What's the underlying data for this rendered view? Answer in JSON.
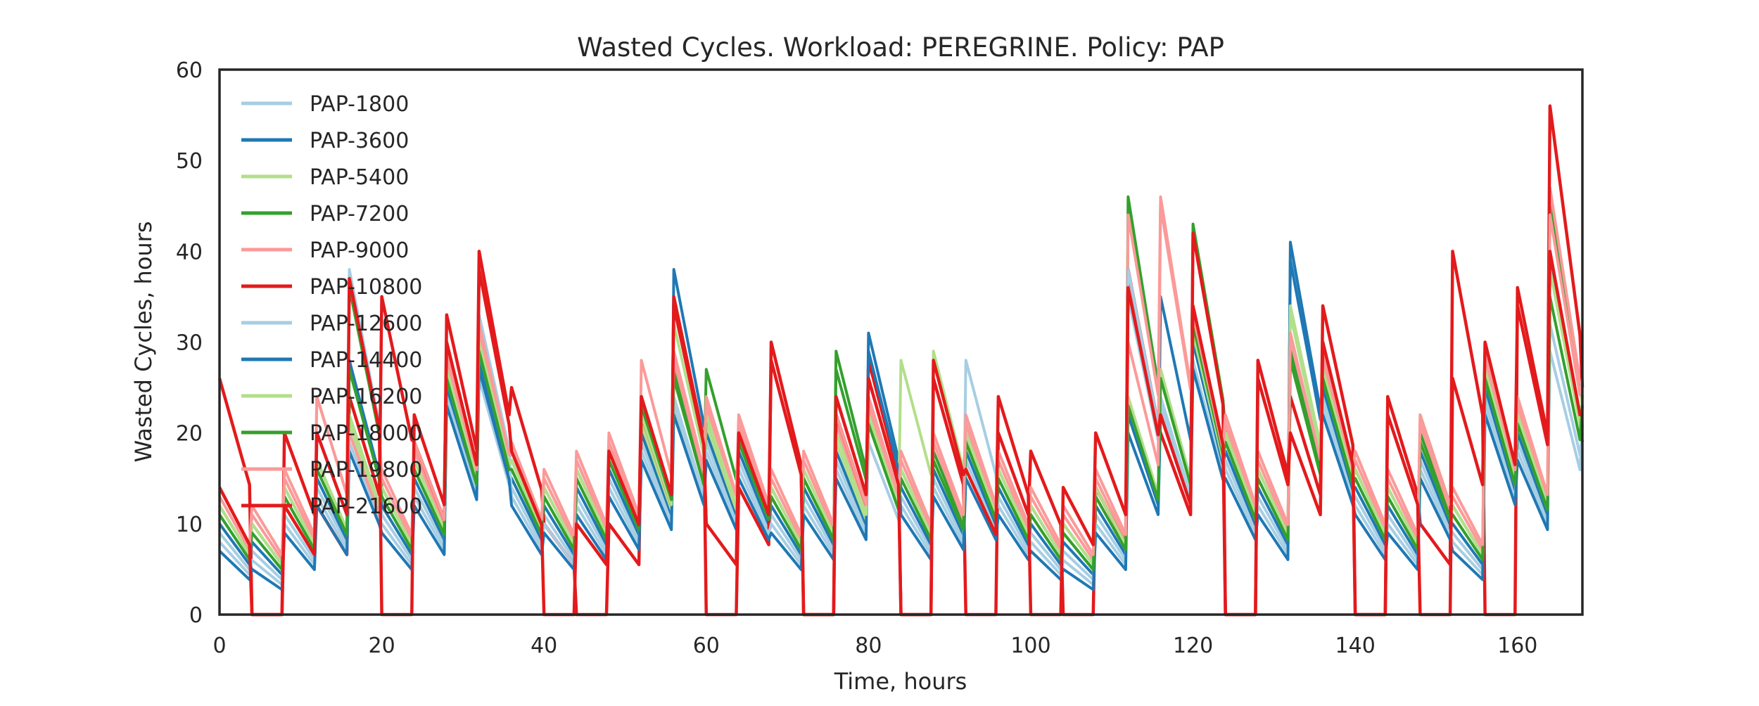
{
  "chart_data": {
    "type": "line",
    "title": "Wasted Cycles. Workload: PEREGRINE. Policy: PAP",
    "xlabel": "Time, hours",
    "ylabel": "Wasted Cycles, hours",
    "xlim": [
      0,
      168
    ],
    "ylim": [
      0,
      60
    ],
    "xticks": [
      0,
      20,
      40,
      60,
      80,
      100,
      120,
      140,
      160
    ],
    "yticks": [
      0,
      10,
      20,
      30,
      40,
      50,
      60
    ],
    "grid": false,
    "legend_position": "top-left",
    "x": [
      0,
      4,
      8,
      12,
      16,
      20,
      24,
      28,
      32,
      36,
      40,
      44,
      48,
      52,
      56,
      60,
      64,
      68,
      72,
      76,
      80,
      84,
      88,
      92,
      96,
      100,
      104,
      108,
      112,
      116,
      120,
      124,
      128,
      132,
      136,
      140,
      144,
      148,
      152,
      156,
      160,
      164,
      168
    ],
    "series": [
      {
        "name": "PAP-1800",
        "color": "#a6cee3",
        "values": [
          9,
          7,
          11,
          14,
          38,
          11,
          14,
          27,
          26,
          14,
          11,
          13,
          15,
          19,
          24,
          19,
          17,
          11,
          13,
          17,
          22,
          13,
          15,
          17,
          13,
          9,
          7,
          11,
          35,
          24,
          28,
          17,
          13,
          40,
          24,
          13,
          11,
          17,
          9,
          24,
          19,
          29,
          21
        ]
      },
      {
        "name": "PAP-3600",
        "color": "#1f78b4",
        "values": [
          10,
          8,
          12,
          15,
          28,
          12,
          15,
          25,
          28,
          15,
          12,
          14,
          16,
          20,
          38,
          20,
          18,
          12,
          14,
          18,
          31,
          14,
          16,
          18,
          14,
          10,
          8,
          12,
          22,
          35,
          30,
          18,
          14,
          41,
          25,
          14,
          12,
          18,
          10,
          25,
          20,
          39,
          22
        ]
      },
      {
        "name": "PAP-5400",
        "color": "#b2df8a",
        "values": [
          11,
          9,
          13,
          16,
          21,
          13,
          16,
          26,
          29,
          16,
          13,
          15,
          17,
          21,
          26,
          21,
          19,
          13,
          15,
          19,
          21,
          28,
          17,
          19,
          15,
          11,
          9,
          13,
          23,
          26,
          31,
          19,
          15,
          33,
          26,
          15,
          13,
          19,
          11,
          26,
          21,
          45,
          23
        ]
      },
      {
        "name": "PAP-7200",
        "color": "#33a02c",
        "values": [
          12,
          10,
          14,
          17,
          36,
          14,
          17,
          27,
          30,
          17,
          14,
          16,
          18,
          22,
          27,
          22,
          20,
          14,
          15,
          29,
          22,
          16,
          18,
          20,
          16,
          12,
          10,
          14,
          46,
          27,
          43,
          20,
          16,
          28,
          27,
          16,
          14,
          20,
          12,
          27,
          22,
          46,
          24
        ]
      },
      {
        "name": "PAP-9000",
        "color": "#fb9a99",
        "values": [
          13,
          11,
          15,
          24,
          37,
          15,
          18,
          28,
          31,
          18,
          15,
          17,
          19,
          28,
          28,
          23,
          21,
          15,
          17,
          21,
          23,
          17,
          19,
          21,
          17,
          13,
          11,
          15,
          44,
          46,
          32,
          21,
          17,
          30,
          28,
          17,
          15,
          21,
          13,
          28,
          23,
          47,
          25
        ]
      },
      {
        "name": "PAP-10800",
        "color": "#e31a1c",
        "values": [
          26,
          0,
          20,
          12,
          24,
          35,
          19,
          33,
          40,
          25,
          10,
          0,
          10,
          22,
          35,
          0,
          14,
          30,
          0,
          22,
          28,
          0,
          26,
          0,
          20,
          18,
          0,
          14,
          38,
          20,
          42,
          0,
          28,
          24,
          34,
          0,
          24,
          10,
          40,
          0,
          36,
          56,
          25
        ]
      },
      {
        "name": "PAP-12600",
        "color": "#a6cee3",
        "values": [
          8,
          6,
          10,
          13,
          19,
          10,
          13,
          24,
          33,
          13,
          10,
          12,
          14,
          18,
          23,
          18,
          16,
          10,
          12,
          16,
          19,
          12,
          14,
          28,
          12,
          8,
          6,
          10,
          38,
          23,
          32,
          16,
          12,
          31,
          23,
          12,
          10,
          16,
          8,
          23,
          18,
          32,
          20
        ]
      },
      {
        "name": "PAP-14400",
        "color": "#1f78b4",
        "values": [
          7,
          5,
          9,
          12,
          18,
          9,
          12,
          23,
          27,
          12,
          9,
          11,
          13,
          17,
          22,
          17,
          15,
          9,
          11,
          15,
          29,
          11,
          13,
          15,
          11,
          7,
          5,
          9,
          20,
          22,
          27,
          15,
          11,
          39,
          22,
          11,
          9,
          15,
          7,
          22,
          17,
          39,
          19
        ]
      },
      {
        "name": "PAP-16200",
        "color": "#b2df8a",
        "values": [
          12,
          10,
          14,
          17,
          22,
          14,
          17,
          27,
          30,
          17,
          14,
          16,
          18,
          22,
          32,
          22,
          20,
          14,
          16,
          20,
          22,
          16,
          29,
          20,
          16,
          12,
          10,
          14,
          24,
          27,
          32,
          20,
          16,
          34,
          27,
          16,
          14,
          22,
          12,
          27,
          22,
          38,
          24
        ]
      },
      {
        "name": "PAP-18000",
        "color": "#33a02c",
        "values": [
          11,
          9,
          13,
          16,
          27,
          13,
          16,
          26,
          29,
          16,
          13,
          15,
          17,
          23,
          26,
          27,
          19,
          13,
          15,
          27,
          21,
          15,
          17,
          19,
          15,
          11,
          9,
          13,
          23,
          26,
          32,
          19,
          15,
          29,
          26,
          15,
          13,
          19,
          11,
          26,
          21,
          35,
          23
        ]
      },
      {
        "name": "PAP-19800",
        "color": "#fb9a99",
        "values": [
          14,
          12,
          16,
          24,
          20,
          16,
          19,
          29,
          32,
          19,
          16,
          18,
          20,
          24,
          29,
          24,
          22,
          16,
          18,
          22,
          24,
          18,
          20,
          22,
          18,
          14,
          12,
          16,
          30,
          45,
          33,
          22,
          18,
          31,
          29,
          18,
          16,
          22,
          14,
          29,
          24,
          44,
          26
        ]
      },
      {
        "name": "PAP-21600",
        "color": "#e31a1c",
        "values": [
          14,
          0,
          12,
          20,
          37,
          0,
          22,
          30,
          38,
          18,
          0,
          10,
          18,
          24,
          34,
          10,
          20,
          28,
          0,
          24,
          26,
          0,
          28,
          16,
          24,
          0,
          14,
          20,
          36,
          22,
          34,
          0,
          26,
          20,
          30,
          0,
          22,
          0,
          26,
          30,
          34,
          40,
          22
        ]
      }
    ]
  }
}
